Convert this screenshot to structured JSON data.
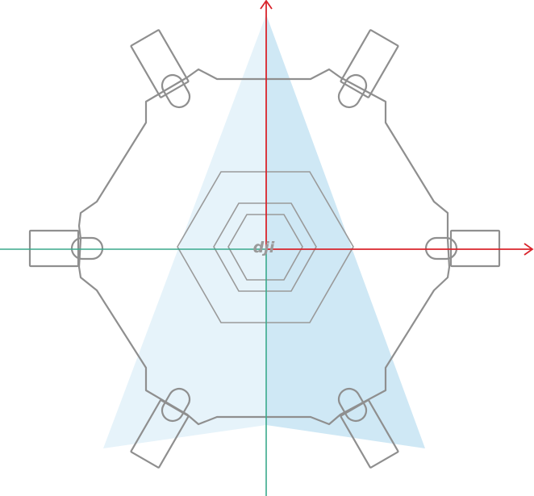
{
  "diagram": {
    "logo_text": "dji",
    "colors": {
      "background": "#ffffff",
      "frame_outline": "#8f8f8f",
      "field_of_view_light": "#e6f3fa",
      "field_of_view_dark": "#cfe8f5",
      "axis_red": "#d9242b",
      "axis_green": "#3aa98c",
      "logo": "#9a9a9a"
    },
    "components": [
      "hexacopter-frame",
      "motor-arm",
      "center-hub",
      "field-of-view",
      "x-axis",
      "y-axis",
      "negative-axis"
    ]
  }
}
